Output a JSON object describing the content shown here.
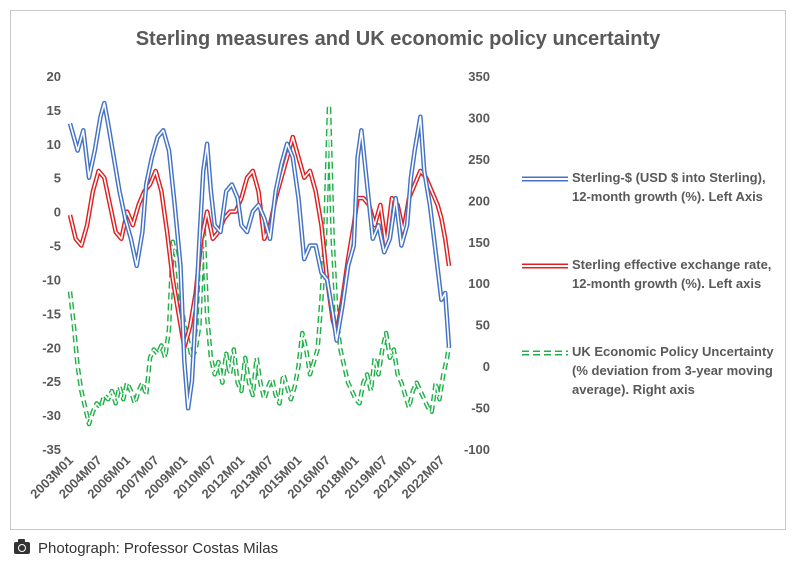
{
  "caption": {
    "icon": "camera-icon",
    "text": "Photograph: Professor Costas Milas"
  },
  "chart_data": {
    "type": "line",
    "title": "Sterling measures  and UK economic policy uncertainty",
    "xlabel": "",
    "ylabel": "",
    "y_left": {
      "ylim": [
        -35,
        20
      ],
      "ticks": [
        "20",
        "15",
        "10",
        "5",
        "0",
        "-5",
        "-10",
        "-15",
        "-20",
        "-25",
        "-30",
        "-35"
      ]
    },
    "y_right": {
      "ylim": [
        -100,
        350
      ],
      "ticks": [
        "350",
        "300",
        "250",
        "200",
        "150",
        "100",
        "50",
        "0",
        "-50",
        "-100"
      ]
    },
    "x_range": [
      "2003M01",
      "2023M08"
    ],
    "x_ticks": [
      "2003M01",
      "2004M07",
      "2006M01",
      "2007M07",
      "2009M01",
      "2010M07",
      "2012M01",
      "2013M07",
      "2015M01",
      "2016M07",
      "2018M01",
      "2019M07",
      "2021M01",
      "2022M07"
    ],
    "grid": false,
    "legend_position": "right",
    "series": [
      {
        "name": "Sterling-$ (USD $ into Sterling), 12-month growth (%). Left Axis",
        "axis": "left",
        "color": "#4472C4",
        "style": "double-solid",
        "points": [
          [
            2003.0,
            13
          ],
          [
            2003.4,
            9
          ],
          [
            2003.7,
            12
          ],
          [
            2004.0,
            5
          ],
          [
            2004.3,
            9
          ],
          [
            2004.6,
            14
          ],
          [
            2004.8,
            16
          ],
          [
            2005.0,
            13
          ],
          [
            2005.3,
            8
          ],
          [
            2005.6,
            3
          ],
          [
            2005.9,
            -1
          ],
          [
            2006.2,
            -4
          ],
          [
            2006.5,
            -8
          ],
          [
            2006.8,
            -3
          ],
          [
            2007.0,
            4
          ],
          [
            2007.3,
            8
          ],
          [
            2007.6,
            11
          ],
          [
            2007.9,
            12
          ],
          [
            2008.2,
            9
          ],
          [
            2008.5,
            1
          ],
          [
            2008.8,
            -8
          ],
          [
            2009.0,
            -22
          ],
          [
            2009.2,
            -29
          ],
          [
            2009.4,
            -25
          ],
          [
            2009.6,
            -15
          ],
          [
            2009.8,
            -4
          ],
          [
            2010.0,
            6
          ],
          [
            2010.2,
            10
          ],
          [
            2010.4,
            3
          ],
          [
            2010.6,
            -2
          ],
          [
            2010.9,
            -3
          ],
          [
            2011.2,
            3
          ],
          [
            2011.5,
            4
          ],
          [
            2011.8,
            2
          ],
          [
            2012.0,
            -2
          ],
          [
            2012.3,
            -3
          ],
          [
            2012.6,
            0
          ],
          [
            2012.9,
            1
          ],
          [
            2013.2,
            -1
          ],
          [
            2013.5,
            -4
          ],
          [
            2013.8,
            3
          ],
          [
            2014.1,
            7
          ],
          [
            2014.4,
            10
          ],
          [
            2014.7,
            8
          ],
          [
            2015.0,
            2
          ],
          [
            2015.3,
            -7
          ],
          [
            2015.6,
            -5
          ],
          [
            2015.9,
            -5
          ],
          [
            2016.2,
            -9
          ],
          [
            2016.5,
            -10
          ],
          [
            2016.8,
            -15
          ],
          [
            2017.0,
            -19
          ],
          [
            2017.3,
            -14
          ],
          [
            2017.6,
            -8
          ],
          [
            2017.9,
            -5
          ],
          [
            2018.1,
            8
          ],
          [
            2018.3,
            12
          ],
          [
            2018.6,
            4
          ],
          [
            2018.9,
            -4
          ],
          [
            2019.2,
            -2
          ],
          [
            2019.5,
            -6
          ],
          [
            2019.8,
            -4
          ],
          [
            2020.1,
            2
          ],
          [
            2020.4,
            -5
          ],
          [
            2020.7,
            -2
          ],
          [
            2020.9,
            5
          ],
          [
            2021.1,
            9
          ],
          [
            2021.4,
            14
          ],
          [
            2021.6,
            6
          ],
          [
            2021.9,
            1
          ],
          [
            2022.2,
            -6
          ],
          [
            2022.5,
            -13
          ],
          [
            2022.7,
            -12
          ],
          [
            2022.9,
            -20
          ]
        ]
      },
      {
        "name": "Sterling effective exchange rate, 12-month growth (%). Left axis",
        "axis": "left",
        "color": "#E02020",
        "style": "double-solid",
        "points": [
          [
            2003.0,
            -0.5
          ],
          [
            2003.3,
            -4
          ],
          [
            2003.6,
            -5
          ],
          [
            2003.9,
            -2
          ],
          [
            2004.2,
            3
          ],
          [
            2004.5,
            6
          ],
          [
            2004.8,
            5
          ],
          [
            2005.1,
            1
          ],
          [
            2005.4,
            -3
          ],
          [
            2005.7,
            -4
          ],
          [
            2006.0,
            0
          ],
          [
            2006.3,
            -2
          ],
          [
            2006.6,
            1
          ],
          [
            2006.9,
            3
          ],
          [
            2007.2,
            4
          ],
          [
            2007.5,
            6
          ],
          [
            2007.8,
            3
          ],
          [
            2008.1,
            -3
          ],
          [
            2008.4,
            -10
          ],
          [
            2008.7,
            -15
          ],
          [
            2009.0,
            -20
          ],
          [
            2009.3,
            -17
          ],
          [
            2009.6,
            -12
          ],
          [
            2009.9,
            -4
          ],
          [
            2010.2,
            0
          ],
          [
            2010.5,
            -4
          ],
          [
            2010.8,
            -3
          ],
          [
            2011.1,
            -1
          ],
          [
            2011.4,
            0
          ],
          [
            2011.7,
            0
          ],
          [
            2012.0,
            2
          ],
          [
            2012.3,
            5
          ],
          [
            2012.6,
            6
          ],
          [
            2012.9,
            3
          ],
          [
            2013.2,
            -4
          ],
          [
            2013.5,
            -2
          ],
          [
            2013.8,
            2
          ],
          [
            2014.1,
            5
          ],
          [
            2014.4,
            8
          ],
          [
            2014.7,
            11
          ],
          [
            2015.0,
            8
          ],
          [
            2015.3,
            5
          ],
          [
            2015.6,
            6
          ],
          [
            2015.9,
            3
          ],
          [
            2016.2,
            -2
          ],
          [
            2016.5,
            -10
          ],
          [
            2016.8,
            -16
          ],
          [
            2017.0,
            -18
          ],
          [
            2017.3,
            -13
          ],
          [
            2017.6,
            -7
          ],
          [
            2017.9,
            -2
          ],
          [
            2018.1,
            2
          ],
          [
            2018.4,
            2
          ],
          [
            2018.7,
            1
          ],
          [
            2019.0,
            -2
          ],
          [
            2019.3,
            1
          ],
          [
            2019.6,
            -5
          ],
          [
            2019.9,
            2
          ],
          [
            2020.2,
            1
          ],
          [
            2020.5,
            -3
          ],
          [
            2020.8,
            2
          ],
          [
            2021.1,
            4
          ],
          [
            2021.4,
            6
          ],
          [
            2021.7,
            5
          ],
          [
            2022.0,
            3
          ],
          [
            2022.3,
            1
          ],
          [
            2022.5,
            -1
          ],
          [
            2022.7,
            -4
          ],
          [
            2022.9,
            -8
          ]
        ]
      },
      {
        "name": "UK Economic Policy Uncertainty (% deviation from 3-year moving average). Right axis",
        "axis": "right",
        "color": "#22B04A",
        "style": "double-dashed",
        "points": [
          [
            2003.0,
            90
          ],
          [
            2003.2,
            50
          ],
          [
            2003.4,
            0
          ],
          [
            2003.6,
            -30
          ],
          [
            2003.8,
            -50
          ],
          [
            2004.0,
            -70
          ],
          [
            2004.2,
            -55
          ],
          [
            2004.4,
            -45
          ],
          [
            2004.6,
            -50
          ],
          [
            2004.8,
            -35
          ],
          [
            2005.0,
            -40
          ],
          [
            2005.2,
            -30
          ],
          [
            2005.4,
            -45
          ],
          [
            2005.6,
            -25
          ],
          [
            2005.8,
            -40
          ],
          [
            2006.0,
            -20
          ],
          [
            2006.2,
            -30
          ],
          [
            2006.4,
            -45
          ],
          [
            2006.6,
            -30
          ],
          [
            2006.8,
            -20
          ],
          [
            2007.0,
            -35
          ],
          [
            2007.2,
            10
          ],
          [
            2007.4,
            20
          ],
          [
            2007.6,
            15
          ],
          [
            2007.8,
            25
          ],
          [
            2008.0,
            10
          ],
          [
            2008.2,
            45
          ],
          [
            2008.4,
            150
          ],
          [
            2008.6,
            130
          ],
          [
            2008.8,
            80
          ],
          [
            2009.0,
            50
          ],
          [
            2009.2,
            30
          ],
          [
            2009.4,
            10
          ],
          [
            2009.6,
            20
          ],
          [
            2009.8,
            50
          ],
          [
            2010.0,
            180
          ],
          [
            2010.2,
            60
          ],
          [
            2010.4,
            10
          ],
          [
            2010.6,
            -10
          ],
          [
            2010.8,
            5
          ],
          [
            2011.0,
            -20
          ],
          [
            2011.2,
            15
          ],
          [
            2011.4,
            -10
          ],
          [
            2011.6,
            20
          ],
          [
            2011.8,
            -20
          ],
          [
            2012.0,
            -30
          ],
          [
            2012.2,
            10
          ],
          [
            2012.4,
            -20
          ],
          [
            2012.6,
            -35
          ],
          [
            2012.8,
            10
          ],
          [
            2013.0,
            -20
          ],
          [
            2013.2,
            -40
          ],
          [
            2013.4,
            -25
          ],
          [
            2013.6,
            -15
          ],
          [
            2013.8,
            -35
          ],
          [
            2014.0,
            -45
          ],
          [
            2014.2,
            -10
          ],
          [
            2014.4,
            -25
          ],
          [
            2014.6,
            -40
          ],
          [
            2014.8,
            -25
          ],
          [
            2015.0,
            0
          ],
          [
            2015.2,
            40
          ],
          [
            2015.4,
            20
          ],
          [
            2015.6,
            -10
          ],
          [
            2015.8,
            5
          ],
          [
            2016.0,
            20
          ],
          [
            2016.2,
            80
          ],
          [
            2016.4,
            160
          ],
          [
            2016.6,
            315
          ],
          [
            2016.8,
            150
          ],
          [
            2017.0,
            60
          ],
          [
            2017.2,
            20
          ],
          [
            2017.4,
            0
          ],
          [
            2017.6,
            -20
          ],
          [
            2017.8,
            -30
          ],
          [
            2018.0,
            -40
          ],
          [
            2018.2,
            -45
          ],
          [
            2018.4,
            -20
          ],
          [
            2018.6,
            -10
          ],
          [
            2018.8,
            -30
          ],
          [
            2019.0,
            10
          ],
          [
            2019.2,
            -10
          ],
          [
            2019.4,
            20
          ],
          [
            2019.6,
            40
          ],
          [
            2019.8,
            10
          ],
          [
            2020.0,
            20
          ],
          [
            2020.2,
            -10
          ],
          [
            2020.4,
            -20
          ],
          [
            2020.6,
            -35
          ],
          [
            2020.8,
            -50
          ],
          [
            2021.0,
            -30
          ],
          [
            2021.2,
            -20
          ],
          [
            2021.4,
            -30
          ],
          [
            2021.6,
            -40
          ],
          [
            2021.8,
            -50
          ],
          [
            2022.0,
            -55
          ],
          [
            2022.2,
            -20
          ],
          [
            2022.4,
            -40
          ],
          [
            2022.6,
            -10
          ],
          [
            2022.8,
            10
          ],
          [
            2022.9,
            25
          ]
        ]
      }
    ]
  }
}
